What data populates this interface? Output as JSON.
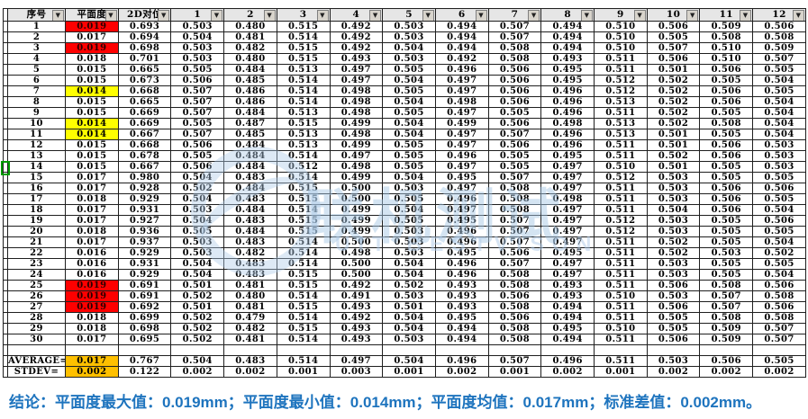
{
  "table": {
    "columns": [
      "序号",
      "平面度",
      "2D对位",
      "1",
      "2",
      "3",
      "4",
      "5",
      "6",
      "7",
      "8",
      "9",
      "10",
      "11",
      "12"
    ],
    "rows": [
      {
        "seq": "1",
        "flatness": "0.019",
        "hl": "red",
        "values": [
          "0.693",
          "0.503",
          "0.480",
          "0.515",
          "0.492",
          "0.503",
          "0.494",
          "0.507",
          "0.494",
          "0.510",
          "0.506",
          "0.509",
          "0.506"
        ]
      },
      {
        "seq": "2",
        "flatness": "0.017",
        "hl": "",
        "values": [
          "0.694",
          "0.504",
          "0.481",
          "0.514",
          "0.492",
          "0.503",
          "0.494",
          "0.507",
          "0.494",
          "0.510",
          "0.505",
          "0.508",
          "0.508"
        ]
      },
      {
        "seq": "3",
        "flatness": "0.019",
        "hl": "red",
        "values": [
          "0.698",
          "0.503",
          "0.482",
          "0.515",
          "0.492",
          "0.504",
          "0.494",
          "0.508",
          "0.494",
          "0.510",
          "0.507",
          "0.510",
          "0.509"
        ]
      },
      {
        "seq": "4",
        "flatness": "0.018",
        "hl": "",
        "values": [
          "0.701",
          "0.503",
          "0.480",
          "0.515",
          "0.493",
          "0.503",
          "0.492",
          "0.508",
          "0.493",
          "0.511",
          "0.506",
          "0.510",
          "0.507"
        ]
      },
      {
        "seq": "5",
        "flatness": "0.015",
        "hl": "",
        "values": [
          "0.665",
          "0.505",
          "0.484",
          "0.513",
          "0.497",
          "0.505",
          "0.496",
          "0.506",
          "0.495",
          "0.511",
          "0.501",
          "0.506",
          "0.505"
        ]
      },
      {
        "seq": "6",
        "flatness": "0.015",
        "hl": "",
        "values": [
          "0.673",
          "0.506",
          "0.485",
          "0.514",
          "0.497",
          "0.504",
          "0.497",
          "0.506",
          "0.495",
          "0.512",
          "0.502",
          "0.505",
          "0.504"
        ]
      },
      {
        "seq": "7",
        "flatness": "0.014",
        "hl": "yellow",
        "values": [
          "0.668",
          "0.507",
          "0.486",
          "0.514",
          "0.498",
          "0.505",
          "0.497",
          "0.506",
          "0.496",
          "0.512",
          "0.502",
          "0.506",
          "0.505"
        ]
      },
      {
        "seq": "8",
        "flatness": "0.015",
        "hl": "",
        "values": [
          "0.665",
          "0.507",
          "0.486",
          "0.514",
          "0.498",
          "0.504",
          "0.498",
          "0.506",
          "0.496",
          "0.513",
          "0.502",
          "0.506",
          "0.504"
        ]
      },
      {
        "seq": "9",
        "flatness": "0.015",
        "hl": "",
        "values": [
          "0.669",
          "0.507",
          "0.484",
          "0.513",
          "0.498",
          "0.505",
          "0.497",
          "0.505",
          "0.496",
          "0.511",
          "0.502",
          "0.505",
          "0.504"
        ]
      },
      {
        "seq": "10",
        "flatness": "0.014",
        "hl": "yellow",
        "values": [
          "0.669",
          "0.505",
          "0.487",
          "0.515",
          "0.499",
          "0.504",
          "0.499",
          "0.506",
          "0.498",
          "0.513",
          "0.502",
          "0.508",
          "0.504"
        ]
      },
      {
        "seq": "11",
        "flatness": "0.014",
        "hl": "yellow",
        "values": [
          "0.667",
          "0.507",
          "0.485",
          "0.513",
          "0.498",
          "0.504",
          "0.497",
          "0.507",
          "0.496",
          "0.513",
          "0.501",
          "0.505",
          "0.504"
        ]
      },
      {
        "seq": "12",
        "flatness": "0.015",
        "hl": "",
        "values": [
          "0.668",
          "0.506",
          "0.484",
          "0.513",
          "0.499",
          "0.505",
          "0.497",
          "0.506",
          "0.496",
          "0.511",
          "0.501",
          "0.506",
          "0.503"
        ]
      },
      {
        "seq": "13",
        "flatness": "0.015",
        "hl": "",
        "values": [
          "0.678",
          "0.505",
          "0.484",
          "0.514",
          "0.497",
          "0.505",
          "0.496",
          "0.505",
          "0.495",
          "0.511",
          "0.502",
          "0.506",
          "0.503"
        ]
      },
      {
        "seq": "14",
        "flatness": "0.015",
        "hl": "",
        "values": [
          "0.667",
          "0.506",
          "0.484",
          "0.512",
          "0.498",
          "0.505",
          "0.497",
          "0.505",
          "0.497",
          "0.510",
          "0.501",
          "0.505",
          "0.503"
        ]
      },
      {
        "seq": "15",
        "flatness": "0.017",
        "hl": "",
        "values": [
          "0.980",
          "0.504",
          "0.483",
          "0.514",
          "0.499",
          "0.504",
          "0.495",
          "0.507",
          "0.497",
          "0.512",
          "0.503",
          "0.505",
          "0.505"
        ]
      },
      {
        "seq": "16",
        "flatness": "0.017",
        "hl": "",
        "values": [
          "0.928",
          "0.502",
          "0.484",
          "0.515",
          "0.500",
          "0.503",
          "0.497",
          "0.508",
          "0.497",
          "0.511",
          "0.503",
          "0.506",
          "0.506"
        ]
      },
      {
        "seq": "17",
        "flatness": "0.018",
        "hl": "",
        "values": [
          "0.929",
          "0.504",
          "0.483",
          "0.515",
          "0.500",
          "0.505",
          "0.496",
          "0.508",
          "0.498",
          "0.511",
          "0.503",
          "0.506",
          "0.505"
        ]
      },
      {
        "seq": "18",
        "flatness": "0.017",
        "hl": "",
        "values": [
          "0.931",
          "0.503",
          "0.484",
          "0.514",
          "0.499",
          "0.504",
          "0.497",
          "0.508",
          "0.497",
          "0.511",
          "0.504",
          "0.506",
          "0.504"
        ]
      },
      {
        "seq": "19",
        "flatness": "0.017",
        "hl": "",
        "values": [
          "0.927",
          "0.504",
          "0.483",
          "0.515",
          "0.499",
          "0.505",
          "0.495",
          "0.507",
          "0.497",
          "0.512",
          "0.503",
          "0.505",
          "0.506"
        ]
      },
      {
        "seq": "20",
        "flatness": "0.018",
        "hl": "",
        "values": [
          "0.936",
          "0.505",
          "0.484",
          "0.515",
          "0.499",
          "0.503",
          "0.496",
          "0.507",
          "0.497",
          "0.512",
          "0.503",
          "0.505",
          "0.505"
        ]
      },
      {
        "seq": "21",
        "flatness": "0.017",
        "hl": "",
        "values": [
          "0.937",
          "0.503",
          "0.483",
          "0.514",
          "0.500",
          "0.503",
          "0.496",
          "0.507",
          "0.497",
          "0.511",
          "0.502",
          "0.505",
          "0.504"
        ]
      },
      {
        "seq": "22",
        "flatness": "0.016",
        "hl": "",
        "values": [
          "0.929",
          "0.503",
          "0.482",
          "0.514",
          "0.498",
          "0.503",
          "0.495",
          "0.506",
          "0.495",
          "0.511",
          "0.502",
          "0.503",
          "0.502"
        ]
      },
      {
        "seq": "23",
        "flatness": "0.016",
        "hl": "",
        "values": [
          "0.931",
          "0.504",
          "0.483",
          "0.514",
          "0.500",
          "0.504",
          "0.496",
          "0.507",
          "0.497",
          "0.511",
          "0.503",
          "0.505",
          "0.505"
        ]
      },
      {
        "seq": "24",
        "flatness": "0.016",
        "hl": "",
        "values": [
          "0.929",
          "0.504",
          "0.483",
          "0.515",
          "0.500",
          "0.504",
          "0.496",
          "0.508",
          "0.497",
          "0.511",
          "0.503",
          "0.505",
          "0.504"
        ]
      },
      {
        "seq": "25",
        "flatness": "0.019",
        "hl": "red",
        "values": [
          "0.691",
          "0.501",
          "0.481",
          "0.515",
          "0.492",
          "0.502",
          "0.493",
          "0.508",
          "0.493",
          "0.511",
          "0.506",
          "0.508",
          "0.506"
        ]
      },
      {
        "seq": "26",
        "flatness": "0.019",
        "hl": "red",
        "values": [
          "0.691",
          "0.502",
          "0.480",
          "0.514",
          "0.491",
          "0.503",
          "0.493",
          "0.506",
          "0.493",
          "0.510",
          "0.503",
          "0.507",
          "0.508"
        ]
      },
      {
        "seq": "27",
        "flatness": "0.019",
        "hl": "red",
        "values": [
          "0.692",
          "0.501",
          "0.481",
          "0.515",
          "0.493",
          "0.501",
          "0.493",
          "0.508",
          "0.494",
          "0.511",
          "0.506",
          "0.507",
          "0.506"
        ]
      },
      {
        "seq": "28",
        "flatness": "0.018",
        "hl": "",
        "values": [
          "0.699",
          "0.502",
          "0.479",
          "0.514",
          "0.492",
          "0.504",
          "0.495",
          "0.506",
          "0.494",
          "0.511",
          "0.505",
          "0.508",
          "0.508"
        ]
      },
      {
        "seq": "29",
        "flatness": "0.018",
        "hl": "",
        "values": [
          "0.698",
          "0.502",
          "0.482",
          "0.515",
          "0.493",
          "0.504",
          "0.494",
          "0.508",
          "0.495",
          "0.510",
          "0.505",
          "0.509",
          "0.507"
        ]
      },
      {
        "seq": "30",
        "flatness": "0.017",
        "hl": "",
        "values": [
          "0.695",
          "0.502",
          "0.481",
          "0.514",
          "0.493",
          "0.503",
          "0.494",
          "0.508",
          "0.494",
          "0.511",
          "0.506",
          "0.509",
          "0.507"
        ]
      }
    ],
    "stats": [
      {
        "seq": "AVERAGE=",
        "flatness": "0.017",
        "hl": "orange",
        "values": [
          "0.767",
          "0.504",
          "0.483",
          "0.514",
          "0.497",
          "0.504",
          "0.496",
          "0.507",
          "0.496",
          "0.511",
          "0.503",
          "0.506",
          "0.505"
        ]
      },
      {
        "seq": "STDEV=",
        "flatness": "0.002",
        "hl": "orange",
        "values": [
          "0.122",
          "0.002",
          "0.002",
          "0.001",
          "0.003",
          "0.001",
          "0.002",
          "0.001",
          "0.002",
          "0.001",
          "0.002",
          "0.002",
          "0.002"
        ]
      }
    ]
  },
  "conclusion": {
    "text": "结论：平面度最大值：0.019mm；平面度最小值：0.014mm；平面度均值：0.017mm；标准差值：0.002mm。"
  },
  "watermark": {
    "chinese": "联机测试",
    "latin": "UIT BESTVISON"
  },
  "colors": {
    "red_highlight": "#FF0000",
    "yellow_highlight": "#FFFF00",
    "orange_highlight": "#FFC000",
    "conclusion_text": "#1E74BE",
    "watermark_blue": "#ADCAE7"
  }
}
